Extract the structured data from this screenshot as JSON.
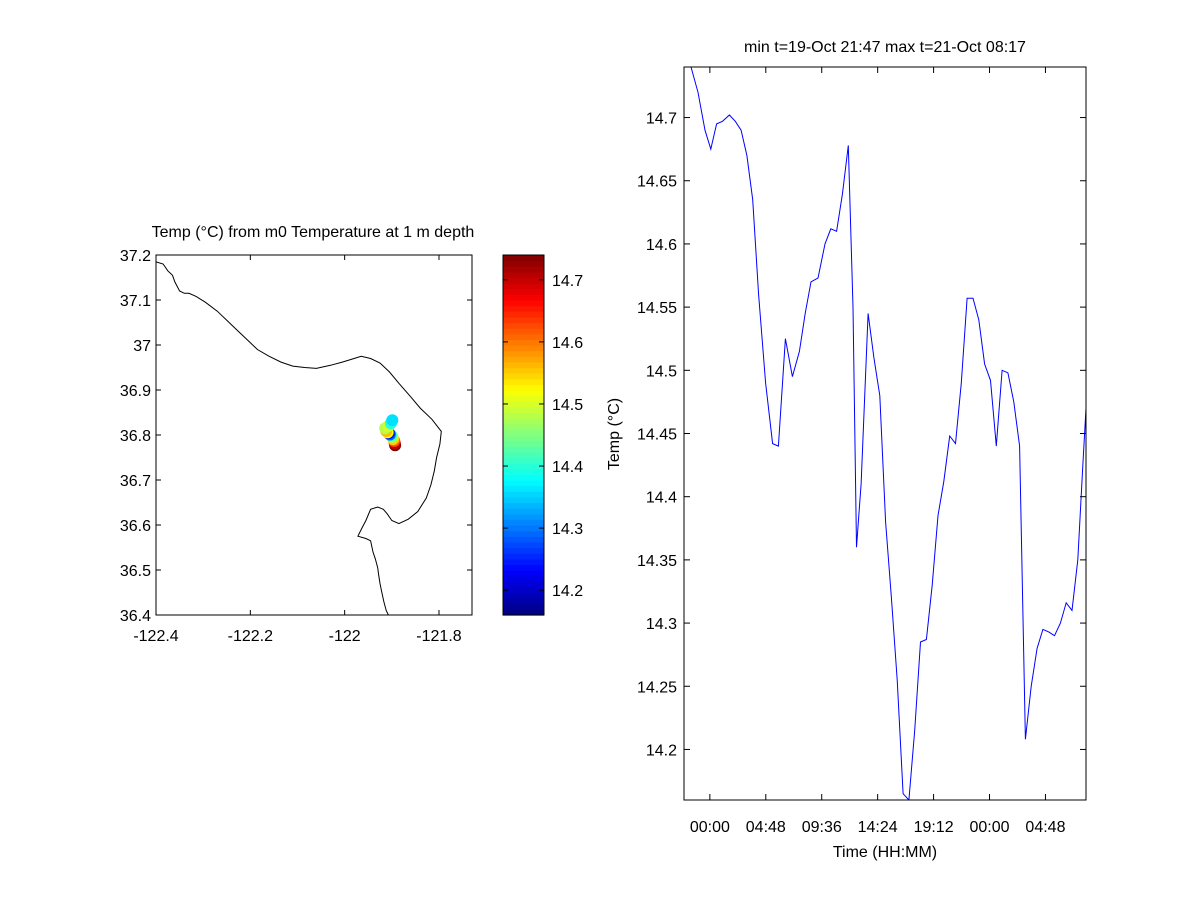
{
  "chart_data": [
    {
      "type": "scatter",
      "title": "Temp (°C) from m0 Temperature at 1 m depth",
      "xlabel": "",
      "ylabel": "",
      "xlim": [
        -122.4,
        -121.73
      ],
      "ylim": [
        36.4,
        37.2
      ],
      "xticks": [
        -122.4,
        -122.2,
        -122,
        -121.8
      ],
      "xtick_labels": [
        "-122.4",
        "-122.2",
        "-122",
        "-121.8"
      ],
      "yticks": [
        36.4,
        36.5,
        36.6,
        36.7,
        36.8,
        36.9,
        37,
        37.1,
        37.2
      ],
      "ytick_labels": [
        "36.4",
        "36.5",
        "36.6",
        "36.7",
        "36.8",
        "36.9",
        "37",
        "37.1",
        "37.2"
      ],
      "grid": false,
      "coastline": [
        [
          -122.4,
          37.185
        ],
        [
          -122.385,
          37.18
        ],
        [
          -122.375,
          37.165
        ],
        [
          -122.365,
          37.155
        ],
        [
          -122.36,
          37.14
        ],
        [
          -122.35,
          37.12
        ],
        [
          -122.34,
          37.115
        ],
        [
          -122.33,
          37.115
        ],
        [
          -122.315,
          37.108
        ],
        [
          -122.295,
          37.095
        ],
        [
          -122.27,
          37.075
        ],
        [
          -122.245,
          37.05
        ],
        [
          -122.225,
          37.03
        ],
        [
          -122.205,
          37.01
        ],
        [
          -122.185,
          36.99
        ],
        [
          -122.16,
          36.975
        ],
        [
          -122.135,
          36.962
        ],
        [
          -122.11,
          36.953
        ],
        [
          -122.085,
          36.95
        ],
        [
          -122.06,
          36.948
        ],
        [
          -122.03,
          36.955
        ],
        [
          -122.005,
          36.962
        ],
        [
          -121.98,
          36.97
        ],
        [
          -121.965,
          36.975
        ],
        [
          -121.945,
          36.97
        ],
        [
          -121.925,
          36.96
        ],
        [
          -121.905,
          36.94
        ],
        [
          -121.885,
          36.915
        ],
        [
          -121.86,
          36.885
        ],
        [
          -121.84,
          36.86
        ],
        [
          -121.815,
          36.835
        ],
        [
          -121.795,
          36.808
        ],
        [
          -121.798,
          36.78
        ],
        [
          -121.805,
          36.75
        ],
        [
          -121.81,
          36.72
        ],
        [
          -121.817,
          36.69
        ],
        [
          -121.827,
          36.66
        ],
        [
          -121.845,
          36.63
        ],
        [
          -121.865,
          36.613
        ],
        [
          -121.885,
          36.603
        ],
        [
          -121.9,
          36.61
        ],
        [
          -121.91,
          36.625
        ],
        [
          -121.918,
          36.635
        ],
        [
          -121.93,
          36.64
        ],
        [
          -121.945,
          36.635
        ],
        [
          -121.955,
          36.61
        ],
        [
          -121.965,
          36.59
        ],
        [
          -121.972,
          36.575
        ],
        [
          -121.955,
          36.57
        ],
        [
          -121.945,
          36.565
        ],
        [
          -121.94,
          36.54
        ],
        [
          -121.935,
          36.525
        ],
        [
          -121.93,
          36.505
        ],
        [
          -121.928,
          36.49
        ],
        [
          -121.925,
          36.47
        ],
        [
          -121.922,
          36.455
        ],
        [
          -121.917,
          36.43
        ],
        [
          -121.912,
          36.41
        ],
        [
          -121.905,
          36.395
        ]
      ],
      "points": [
        {
          "lon": -121.893,
          "lat": 36.777,
          "temp": 14.74
        },
        {
          "lon": -121.894,
          "lat": 36.782,
          "temp": 14.7
        },
        {
          "lon": -121.895,
          "lat": 36.787,
          "temp": 14.62
        },
        {
          "lon": -121.897,
          "lat": 36.791,
          "temp": 14.55
        },
        {
          "lon": -121.899,
          "lat": 36.796,
          "temp": 14.47
        },
        {
          "lon": -121.901,
          "lat": 36.799,
          "temp": 14.42
        },
        {
          "lon": -121.904,
          "lat": 36.801,
          "temp": 14.29
        },
        {
          "lon": -121.906,
          "lat": 36.804,
          "temp": 14.25
        },
        {
          "lon": -121.909,
          "lat": 36.806,
          "temp": 14.52
        },
        {
          "lon": -121.912,
          "lat": 36.809,
          "temp": 14.56
        },
        {
          "lon": -121.914,
          "lat": 36.815,
          "temp": 14.48
        },
        {
          "lon": -121.907,
          "lat": 36.82,
          "temp": 14.5
        },
        {
          "lon": -121.902,
          "lat": 36.826,
          "temp": 14.4
        },
        {
          "lon": -121.899,
          "lat": 36.833,
          "temp": 14.36
        }
      ],
      "colorbar": {
        "colormap": "jet",
        "min": 14.16,
        "max": 14.74,
        "ticks": [
          14.2,
          14.3,
          14.4,
          14.5,
          14.6,
          14.7
        ],
        "tick_labels": [
          "14.2",
          "14.3",
          "14.4",
          "14.5",
          "14.6",
          "14.7"
        ]
      }
    },
    {
      "type": "line",
      "title": "min t=19-Oct 21:47 max t=21-Oct 08:17",
      "xlabel": "Time (HH:MM)",
      "ylabel": "Temp (°C)",
      "x_units": "hours since 19-Oct 21:47",
      "xlim": [
        0,
        34.5
      ],
      "ylim": [
        14.16,
        14.74
      ],
      "xticks": [
        2.22,
        7.02,
        11.82,
        16.62,
        21.42,
        26.22,
        31.02
      ],
      "xtick_labels": [
        "00:00",
        "04:48",
        "09:36",
        "14:24",
        "19:12",
        "00:00",
        "04:48"
      ],
      "yticks": [
        14.2,
        14.25,
        14.3,
        14.35,
        14.4,
        14.45,
        14.5,
        14.55,
        14.6,
        14.65,
        14.7
      ],
      "ytick_labels": [
        "14.2",
        "14.25",
        "14.3",
        "14.35",
        "14.4",
        "14.45",
        "14.5",
        "14.55",
        "14.6",
        "14.65",
        "14.7"
      ],
      "grid": false,
      "color": "#0000ff",
      "series": [
        {
          "x": [
            0.0,
            0.6,
            1.2,
            1.8,
            2.3,
            2.8,
            3.3,
            3.9,
            4.4,
            4.9,
            5.4,
            5.9,
            6.4,
            7.0,
            7.6,
            8.1,
            8.7,
            9.3,
            9.9,
            10.4,
            10.9,
            11.5,
            12.1,
            12.6,
            13.1,
            13.6,
            14.1,
            14.5,
            14.8,
            15.2,
            15.8,
            16.3,
            16.8,
            17.3,
            17.8,
            18.3,
            18.8,
            19.3,
            19.8,
            20.3,
            20.8,
            21.3,
            21.8,
            22.3,
            22.8,
            23.3,
            23.8,
            24.3,
            24.8,
            25.3,
            25.8,
            26.3,
            26.8,
            27.3,
            27.8,
            28.3,
            28.8,
            29.3,
            29.8,
            30.3,
            30.8,
            31.3,
            31.8,
            32.3,
            32.8,
            33.3,
            33.8,
            34.2,
            34.5
          ],
          "y": [
            14.74,
            14.74,
            14.72,
            14.69,
            14.675,
            14.695,
            14.697,
            14.702,
            14.697,
            14.69,
            14.67,
            14.635,
            14.56,
            14.49,
            14.442,
            14.44,
            14.525,
            14.495,
            14.515,
            14.545,
            14.57,
            14.573,
            14.6,
            14.612,
            14.61,
            14.64,
            14.678,
            14.55,
            14.36,
            14.41,
            14.545,
            14.51,
            14.48,
            14.38,
            14.32,
            14.255,
            14.165,
            14.16,
            14.215,
            14.285,
            14.287,
            14.33,
            14.385,
            14.412,
            14.448,
            14.442,
            14.49,
            14.557,
            14.557,
            14.54,
            14.505,
            14.492,
            14.44,
            14.5,
            14.498,
            14.475,
            14.44,
            14.208,
            14.25,
            14.28,
            14.295,
            14.293,
            14.29,
            14.3,
            14.316,
            14.31,
            14.35,
            14.42,
            14.47
          ]
        }
      ]
    }
  ]
}
